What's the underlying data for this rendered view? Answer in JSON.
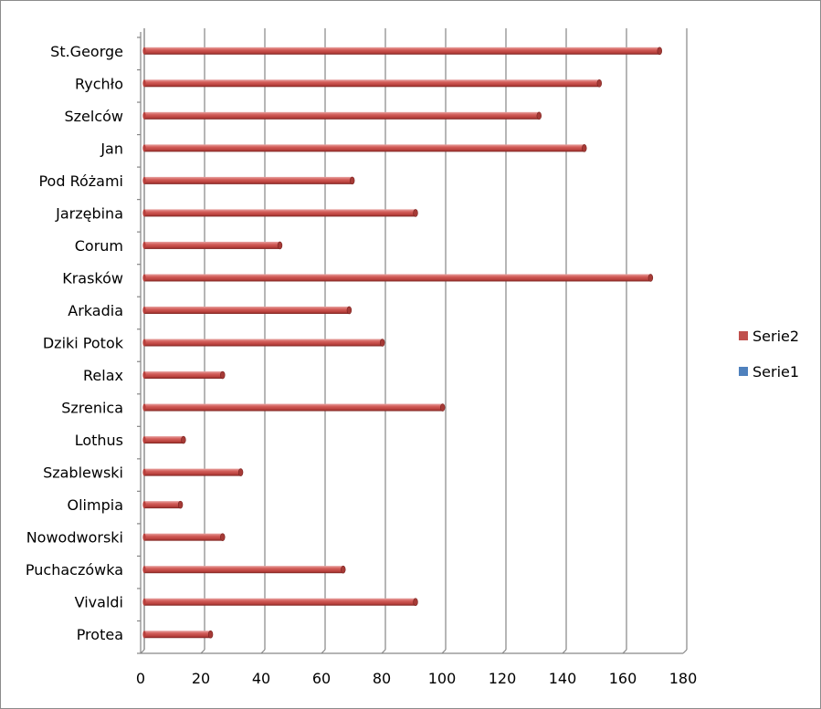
{
  "chart_data": {
    "type": "bar",
    "orientation": "horizontal",
    "style": "3d-cylinder",
    "title": "",
    "xlabel": "",
    "ylabel": "",
    "xlim": [
      0,
      180
    ],
    "x_ticks": [
      0,
      20,
      40,
      60,
      80,
      100,
      120,
      140,
      160,
      180
    ],
    "grid": "vertical major gridlines",
    "legend_position": "right",
    "categories": [
      "St.George",
      "Rychło",
      "Szelców",
      "Jan",
      "Pod Różami",
      "Jarzębina",
      "Corum",
      "Krasków",
      "Arkadia",
      "Dziki Potok",
      "Relax",
      "Szrenica",
      "Lothus",
      "Szablewski",
      "Olimpia",
      "Nowodworski",
      "Puchaczówka",
      "Vivaldi",
      "Protea"
    ],
    "series": [
      {
        "name": "Serie2",
        "color": "#c0504d",
        "values": [
          171,
          151,
          131,
          146,
          69,
          90,
          45,
          168,
          68,
          79,
          26,
          99,
          13,
          32,
          12,
          26,
          66,
          90,
          22
        ]
      },
      {
        "name": "Serie1",
        "color": "#4f81bd",
        "values": [
          0,
          0,
          0,
          0,
          0,
          0,
          0,
          0,
          0,
          0,
          0,
          0,
          0,
          0,
          0,
          0,
          0,
          0,
          0
        ]
      }
    ]
  }
}
